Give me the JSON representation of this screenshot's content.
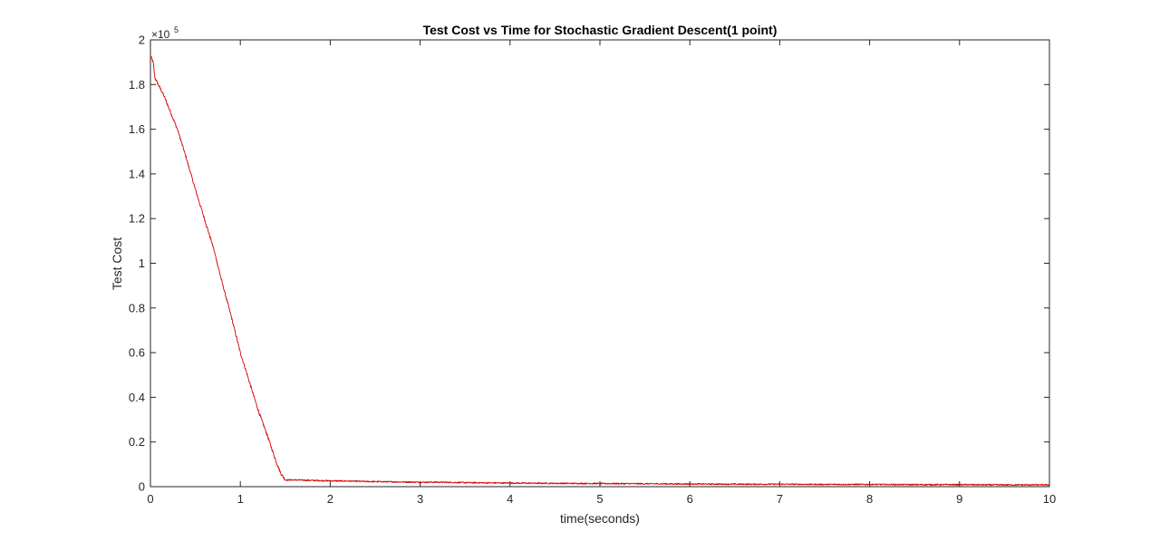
{
  "chart_data": {
    "type": "line",
    "title": "Test Cost vs Time for Stochastic Gradient Descent(1 point)",
    "xlabel": "time(seconds)",
    "ylabel": "Test Cost",
    "y_exponent_base": "×10",
    "y_exponent_power": "5",
    "xlim": [
      0,
      10
    ],
    "ylim": [
      0,
      2
    ],
    "x_ticks": [
      0,
      1,
      2,
      3,
      4,
      5,
      6,
      7,
      8,
      9,
      10
    ],
    "x_tick_labels": [
      "0",
      "1",
      "2",
      "3",
      "4",
      "5",
      "6",
      "7",
      "8",
      "9",
      "10"
    ],
    "y_ticks": [
      0,
      0.2,
      0.4,
      0.6,
      0.8,
      1.0,
      1.2,
      1.4,
      1.6,
      1.8,
      2.0
    ],
    "y_tick_labels": [
      "0",
      "0.2",
      "0.4",
      "0.6",
      "0.8",
      "1",
      "1.2",
      "1.4",
      "1.6",
      "1.8",
      "2"
    ],
    "grid": false,
    "box": true,
    "series": [
      {
        "color": "#d40000",
        "x": [
          0,
          0.03,
          0.05,
          0.1,
          0.15,
          0.2,
          0.3,
          0.4,
          0.5,
          0.6,
          0.7,
          0.8,
          0.9,
          1.0,
          1.1,
          1.2,
          1.3,
          1.4,
          1.45,
          1.5,
          1.6,
          1.8,
          2.0,
          2.2,
          2.4,
          2.6,
          2.8,
          3.0,
          3.2,
          3.5,
          4.0,
          4.5,
          5.0,
          5.5,
          6.0,
          6.5,
          7.0,
          7.5,
          8.0,
          8.5,
          9.0,
          9.5,
          10.0
        ],
        "y": [
          1.93,
          1.9,
          1.83,
          1.79,
          1.75,
          1.7,
          1.6,
          1.47,
          1.33,
          1.2,
          1.07,
          0.91,
          0.76,
          0.6,
          0.47,
          0.34,
          0.23,
          0.11,
          0.06,
          0.03,
          0.03,
          0.028,
          0.026,
          0.025,
          0.023,
          0.022,
          0.021,
          0.02,
          0.02,
          0.018,
          0.016,
          0.015,
          0.014,
          0.013,
          0.012,
          0.011,
          0.011,
          0.01,
          0.01,
          0.009,
          0.009,
          0.008,
          0.008
        ]
      }
    ]
  }
}
